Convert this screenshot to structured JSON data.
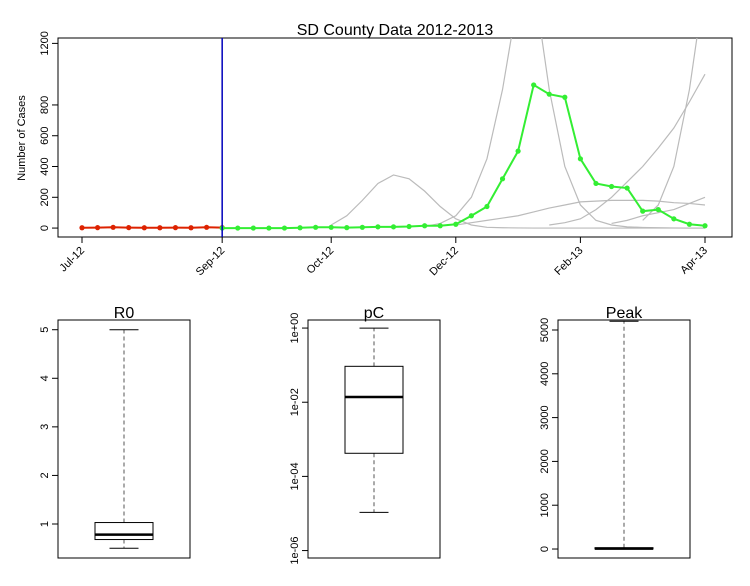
{
  "chart_data": [
    {
      "type": "line",
      "title": "SD County Data 2012-2013",
      "ylabel": "Number of Cases",
      "categories": [
        "Jul-12",
        null,
        null,
        null,
        null,
        null,
        null,
        null,
        null,
        "Sep-12",
        null,
        null,
        null,
        null,
        null,
        null,
        "Oct-12",
        null,
        null,
        null,
        null,
        null,
        null,
        null,
        "Dec-12",
        null,
        null,
        null,
        null,
        null,
        null,
        null,
        "Feb-13",
        null,
        null,
        null,
        null,
        null,
        null,
        null,
        "Apr-13"
      ],
      "ylim": [
        -58,
        1235
      ],
      "yticks": [
        0,
        200,
        400,
        600,
        800,
        1200
      ],
      "series": [
        {
          "color": "#bbbbbb",
          "values": [
            null,
            null,
            null,
            null,
            null,
            null,
            null,
            null,
            null,
            null,
            null,
            null,
            null,
            null,
            null,
            null,
            20,
            80,
            180,
            290,
            345,
            320,
            240,
            140,
            60,
            20,
            5,
            2,
            1,
            0,
            0,
            0,
            0,
            0,
            0,
            0,
            0,
            0,
            0,
            0,
            0
          ]
        },
        {
          "color": "#bbbbbb",
          "values": [
            null,
            null,
            null,
            null,
            null,
            null,
            null,
            null,
            null,
            null,
            null,
            null,
            null,
            null,
            null,
            null,
            null,
            null,
            null,
            null,
            null,
            null,
            10,
            30,
            80,
            200,
            450,
            900,
            1500,
            null,
            null,
            null,
            null,
            null,
            null,
            null,
            null,
            null,
            null,
            null,
            null
          ]
        },
        {
          "color": "#bbbbbb",
          "values": [
            null,
            null,
            null,
            null,
            null,
            null,
            null,
            null,
            null,
            null,
            null,
            null,
            null,
            null,
            null,
            null,
            null,
            null,
            null,
            null,
            null,
            null,
            null,
            null,
            null,
            null,
            null,
            null,
            null,
            1600,
            900,
            400,
            150,
            50,
            20,
            8,
            4,
            2,
            1,
            0,
            0
          ]
        },
        {
          "color": "#bbbbbb",
          "values": [
            null,
            null,
            null,
            null,
            null,
            null,
            null,
            null,
            null,
            null,
            null,
            null,
            null,
            null,
            null,
            null,
            null,
            null,
            null,
            null,
            null,
            null,
            null,
            null,
            null,
            null,
            null,
            null,
            null,
            null,
            20,
            35,
            60,
            120,
            200,
            300,
            400,
            520,
            650,
            820,
            1000
          ]
        },
        {
          "color": "#bbbbbb",
          "values": [
            null,
            null,
            null,
            null,
            null,
            null,
            null,
            null,
            null,
            null,
            null,
            null,
            null,
            null,
            null,
            null,
            null,
            null,
            null,
            null,
            null,
            null,
            null,
            null,
            null,
            null,
            null,
            null,
            null,
            null,
            null,
            null,
            null,
            null,
            null,
            null,
            50,
            150,
            400,
            900,
            1600
          ]
        },
        {
          "color": "#bbbbbb",
          "values": [
            null,
            null,
            null,
            null,
            null,
            null,
            null,
            null,
            null,
            null,
            null,
            null,
            null,
            null,
            null,
            null,
            null,
            null,
            null,
            null,
            null,
            null,
            null,
            null,
            20,
            35,
            50,
            65,
            80,
            105,
            130,
            150,
            170,
            175,
            180,
            180,
            180,
            175,
            165,
            160,
            150
          ]
        },
        {
          "color": "#bbbbbb",
          "values": [
            null,
            null,
            null,
            null,
            null,
            null,
            null,
            null,
            null,
            null,
            null,
            null,
            null,
            null,
            null,
            null,
            null,
            null,
            null,
            null,
            null,
            null,
            null,
            null,
            null,
            null,
            null,
            null,
            null,
            null,
            null,
            null,
            null,
            null,
            30,
            50,
            80,
            100,
            120,
            160,
            200
          ]
        },
        {
          "color": "#dd2200",
          "marker": true,
          "values": [
            2,
            3,
            5,
            3,
            2,
            2,
            3,
            2,
            5,
            3,
            null,
            null,
            null,
            null,
            null,
            null,
            null,
            null,
            null,
            null,
            null,
            null,
            null,
            null,
            null,
            null,
            null,
            null,
            null,
            null,
            null,
            null,
            null,
            null,
            null,
            null,
            null,
            null,
            null,
            null,
            null
          ]
        },
        {
          "color": "#33ee33",
          "marker": true,
          "values": [
            null,
            null,
            null,
            null,
            null,
            null,
            null,
            null,
            null,
            0,
            0,
            0,
            0,
            0,
            2,
            5,
            5,
            3,
            5,
            8,
            8,
            10,
            15,
            15,
            25,
            80,
            140,
            320,
            500,
            930,
            870,
            850,
            450,
            290,
            270,
            260,
            110,
            120,
            60,
            25,
            15
          ]
        }
      ],
      "vline_color": "#0000bb"
    },
    {
      "type": "box",
      "title": "R0",
      "ylim": [
        0.3,
        5.2
      ],
      "yticks": [
        1,
        2,
        3,
        4,
        5
      ],
      "stats": {
        "whisker_low": 0.5,
        "q1": 0.68,
        "median": 0.78,
        "q3": 1.03,
        "whisker_high": 5.0
      }
    },
    {
      "type": "box",
      "title": "pC",
      "log": true,
      "ylim": [
        6.3e-07,
        1.65
      ],
      "yticks": [
        {
          "value": 1e-06,
          "label": "1e-06"
        },
        {
          "value": 0.0001,
          "label": "1e-04"
        },
        {
          "value": 0.01,
          "label": "1e-02"
        },
        {
          "value": 1,
          "label": "1e+00"
        }
      ],
      "stats": {
        "whisker_low": 1.07e-05,
        "q1": 0.00042,
        "median": 0.0138,
        "q3": 0.093,
        "whisker_high": 1
      }
    },
    {
      "type": "box",
      "title": "Peak",
      "ylim": [
        -205,
        5228
      ],
      "yticks": [
        0,
        1000,
        2000,
        3000,
        4000,
        5000
      ],
      "stats": {
        "whisker_low": 0,
        "q1": 0,
        "median": 10,
        "q3": 30,
        "whisker_high": 5200
      }
    }
  ]
}
